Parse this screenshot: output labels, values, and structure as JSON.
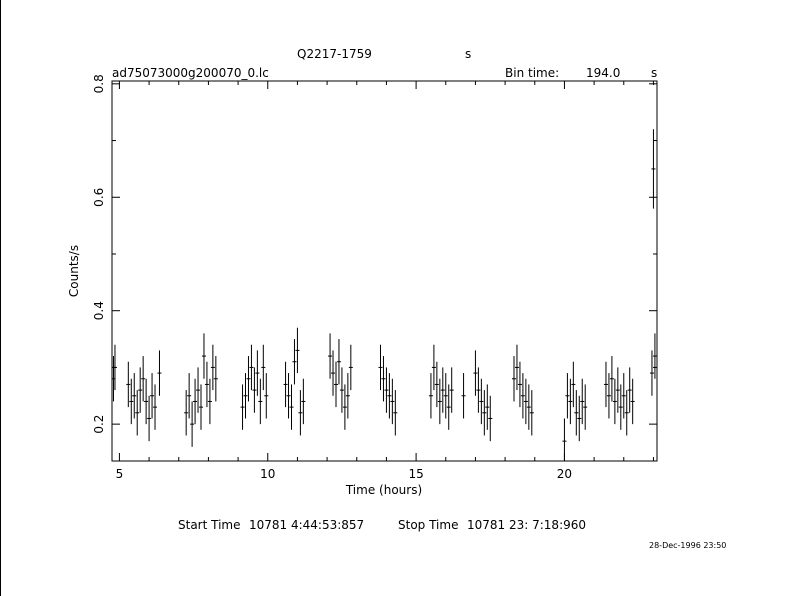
{
  "header": {
    "source": "Q2217-1759",
    "source_unit": "s",
    "file": "ad75073000g200070_0.lc",
    "bin_label": "Bin time:",
    "bin_value": "194.0",
    "bin_unit": "s"
  },
  "footer": {
    "start_label": "Start Time",
    "start_value": "10781  4:44:53:857",
    "stop_label": "Stop Time",
    "stop_value": "10781 23: 7:18:960",
    "date": "28-Dec-1996 23:50"
  },
  "chart_data": {
    "type": "scatter",
    "xlabel": "Time (hours)",
    "ylabel": "Counts/s",
    "xlim": [
      4.75,
      23.12
    ],
    "ylim": [
      0.135,
      0.805
    ],
    "xticks": [
      5,
      10,
      15,
      20
    ],
    "xtick_labels": [
      "5",
      "10",
      "15",
      "20"
    ],
    "yticks": [
      0.2,
      0.4,
      0.6,
      0.8
    ],
    "ytick_labels": [
      "0.2",
      "0.4",
      "0.6",
      "0.8"
    ],
    "grid": false,
    "series": [
      {
        "values": [
          [
            4.8,
            0.28
          ],
          [
            4.85,
            0.3
          ],
          [
            5.3,
            0.27
          ],
          [
            5.4,
            0.24
          ],
          [
            5.5,
            0.25
          ],
          [
            5.6,
            0.22
          ],
          [
            5.7,
            0.26
          ],
          [
            5.8,
            0.28
          ],
          [
            5.9,
            0.24
          ],
          [
            6.0,
            0.21
          ],
          [
            6.1,
            0.25
          ],
          [
            6.2,
            0.23
          ],
          [
            6.35,
            0.29
          ],
          [
            7.25,
            0.22
          ],
          [
            7.35,
            0.25
          ],
          [
            7.45,
            0.2
          ],
          [
            7.55,
            0.24
          ],
          [
            7.65,
            0.26
          ],
          [
            7.75,
            0.23
          ],
          [
            7.85,
            0.32
          ],
          [
            7.95,
            0.27
          ],
          [
            8.05,
            0.24
          ],
          [
            8.15,
            0.3
          ],
          [
            8.25,
            0.28
          ],
          [
            9.15,
            0.23
          ],
          [
            9.25,
            0.25
          ],
          [
            9.35,
            0.28
          ],
          [
            9.45,
            0.3
          ],
          [
            9.55,
            0.26
          ],
          [
            9.65,
            0.29
          ],
          [
            9.75,
            0.24
          ],
          [
            9.85,
            0.3
          ],
          [
            9.95,
            0.25
          ],
          [
            10.6,
            0.27
          ],
          [
            10.7,
            0.25
          ],
          [
            10.8,
            0.23
          ],
          [
            10.9,
            0.31
          ],
          [
            11.0,
            0.33
          ],
          [
            11.1,
            0.22
          ],
          [
            11.2,
            0.24
          ],
          [
            12.1,
            0.32
          ],
          [
            12.2,
            0.29
          ],
          [
            12.3,
            0.27
          ],
          [
            12.4,
            0.31
          ],
          [
            12.5,
            0.26
          ],
          [
            12.6,
            0.23
          ],
          [
            12.7,
            0.25
          ],
          [
            12.8,
            0.3
          ],
          [
            13.8,
            0.3
          ],
          [
            13.9,
            0.28
          ],
          [
            14.0,
            0.26
          ],
          [
            14.1,
            0.25
          ],
          [
            14.2,
            0.24
          ],
          [
            14.3,
            0.22
          ],
          [
            15.5,
            0.25
          ],
          [
            15.6,
            0.3
          ],
          [
            15.7,
            0.27
          ],
          [
            15.8,
            0.24
          ],
          [
            15.9,
            0.26
          ],
          [
            16.0,
            0.25
          ],
          [
            16.1,
            0.23
          ],
          [
            16.2,
            0.26
          ],
          [
            16.6,
            0.25
          ],
          [
            17.0,
            0.29
          ],
          [
            17.1,
            0.26
          ],
          [
            17.2,
            0.24
          ],
          [
            17.3,
            0.22
          ],
          [
            17.4,
            0.23
          ],
          [
            17.5,
            0.21
          ],
          [
            18.3,
            0.28
          ],
          [
            18.4,
            0.3
          ],
          [
            18.5,
            0.27
          ],
          [
            18.6,
            0.25
          ],
          [
            18.7,
            0.24
          ],
          [
            18.8,
            0.23
          ],
          [
            18.9,
            0.22
          ],
          [
            20.0,
            0.17
          ],
          [
            20.1,
            0.25
          ],
          [
            20.2,
            0.24
          ],
          [
            20.3,
            0.27
          ],
          [
            20.4,
            0.22
          ],
          [
            20.5,
            0.21
          ],
          [
            20.6,
            0.24
          ],
          [
            20.7,
            0.23
          ],
          [
            21.4,
            0.27
          ],
          [
            21.5,
            0.25
          ],
          [
            21.6,
            0.28
          ],
          [
            21.7,
            0.24
          ],
          [
            21.8,
            0.26
          ],
          [
            21.9,
            0.23
          ],
          [
            22.0,
            0.25
          ],
          [
            22.1,
            0.22
          ],
          [
            22.2,
            0.26
          ],
          [
            22.3,
            0.24
          ],
          [
            22.95,
            0.29
          ],
          [
            23.0,
            0.65
          ],
          [
            23.05,
            0.32
          ]
        ]
      }
    ]
  }
}
